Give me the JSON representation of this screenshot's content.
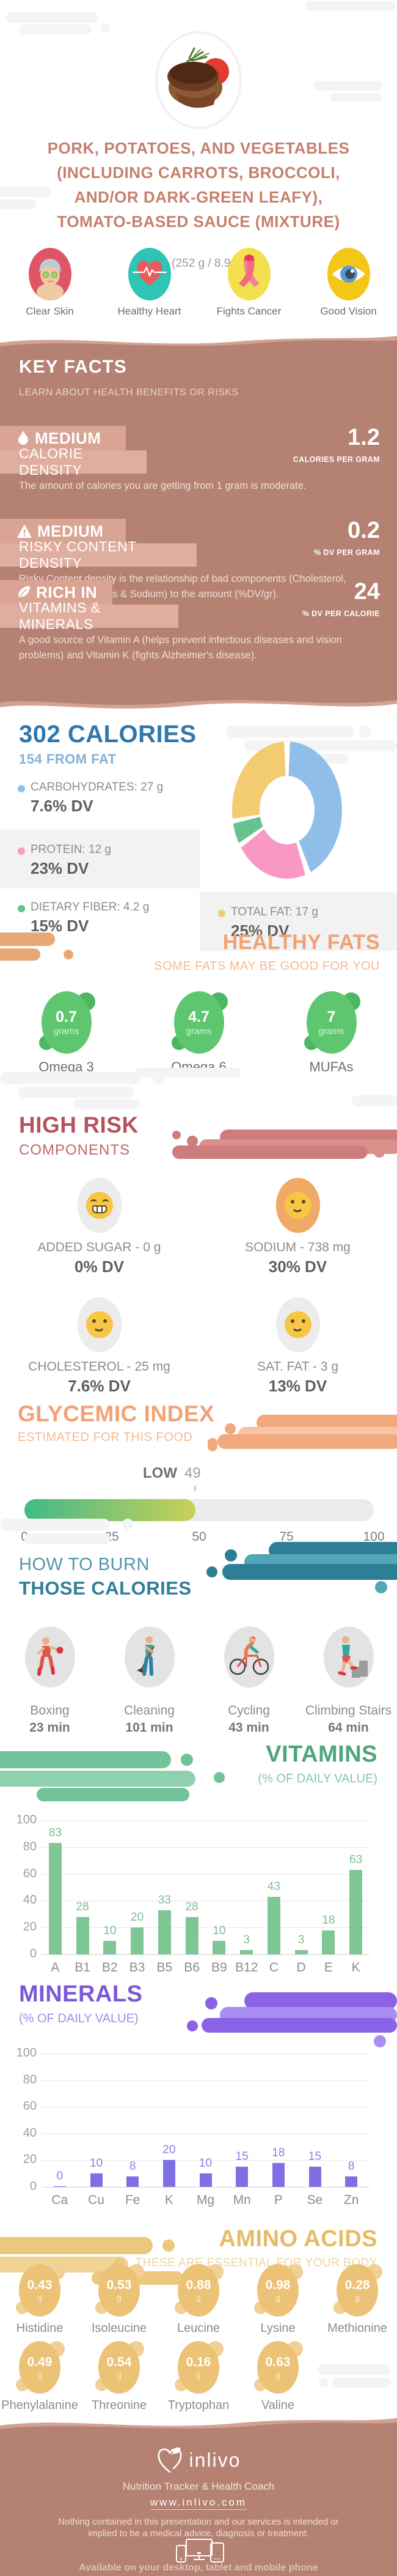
{
  "header": {
    "title_lines": [
      "PORK, POTATOES, AND VEGETABLES",
      "(INCLUDING CARROTS, BROCCOLI,",
      "AND/OR DARK-GREEN LEAFY),",
      "TOMATO-BASED SAUCE (MIXTURE)"
    ],
    "serving": "Cup (252 g / 8.9 oz)",
    "benefits": [
      {
        "icon": "clear-skin-icon",
        "label": "Clear Skin"
      },
      {
        "icon": "healthy-heart-icon",
        "label": "Healthy Heart"
      },
      {
        "icon": "fights-cancer-icon",
        "label": "Fights Cancer"
      },
      {
        "icon": "good-vision-icon",
        "label": "Good Vision"
      }
    ]
  },
  "key_facts": {
    "title": "KEY FACTS",
    "subtitle": "LEARN ABOUT HEALTH BENEFITS OR RISKS",
    "facts": [
      {
        "icon": "flame-icon",
        "level": "MEDIUM",
        "name": "CALORIE DENSITY",
        "value": "1.2",
        "unit": "CALORIES PER GRAM",
        "description": "The amount of calories you are getting from 1 gram is moderate."
      },
      {
        "icon": "warning-icon",
        "level": "MEDIUM",
        "name": "RISKY CONTENT DENSITY",
        "value": "0.2",
        "unit": "% DV PER GRAM",
        "description": "Risky Content density is the relationship of bad components (Cholesterol, Saturated Fat, Sugars & Sodium) to the amount (%DV/gr)."
      },
      {
        "icon": "leaf-icon",
        "level": "RICH IN",
        "name": "VITAMINS & MINERALS",
        "value": "24",
        "unit": "% DV PER CALORIE",
        "description": "A good source of Vitamin A (helps prevent infectious diseases and vision problems) and Vitamin K (fights Alzheimer's disease)."
      }
    ]
  },
  "calories": {
    "title": "302 CALORIES",
    "subtitle": "154 FROM FAT",
    "legend": [
      {
        "label": "CARBOHYDRATES: 27 g",
        "dv": "7.6% DV",
        "color": "#8fbfe8",
        "highlight": false
      },
      {
        "label": "PROTEIN: 12 g",
        "dv": "23% DV",
        "color": "#f899c5",
        "highlight": true
      },
      {
        "label": "DIETARY FIBER: 4.2 g",
        "dv": "15% DV",
        "color": "#66c28e",
        "highlight": false
      },
      {
        "label": "TOTAL FAT: 17 g",
        "dv": "25% DV",
        "color": "#f3cb71",
        "highlight": true
      }
    ]
  },
  "healthy_fats": {
    "title": "HEALTHY FATS",
    "subtitle": "SOME FATS MAY BE GOOD FOR YOU",
    "items": [
      {
        "value": "0.7",
        "unit": "grams",
        "label": "Omega 3"
      },
      {
        "value": "4.7",
        "unit": "grams",
        "label": "Omega 6"
      },
      {
        "value": "7",
        "unit": "grams",
        "label": "MUFAs"
      }
    ]
  },
  "high_risk": {
    "title": "HIGH RISK",
    "subtitle": "COMPONENTS",
    "items": [
      {
        "label": "ADDED SUGAR - 0 g",
        "dv": "0% DV",
        "face": "grin",
        "circle_bg": "#ececec"
      },
      {
        "label": "SODIUM - 738 mg",
        "dv": "30% DV",
        "face": "smile",
        "circle_bg": "#f0aa66"
      },
      {
        "label": "CHOLESTEROL - 25 mg",
        "dv": "7.6% DV",
        "face": "smile",
        "circle_bg": "#ececec"
      },
      {
        "label": "SAT. FAT - 3 g",
        "dv": "13% DV",
        "face": "smile",
        "circle_bg": "#ececec"
      }
    ]
  },
  "glycemic_index": {
    "title": "GLYCEMIC INDEX",
    "subtitle": "ESTIMATED FOR THIS FOOD",
    "category": "LOW",
    "value": 49,
    "scale": [
      "0",
      "25",
      "50",
      "75",
      "100"
    ]
  },
  "burn": {
    "title_line1": "HOW TO BURN",
    "title_line2": "THOSE CALORIES",
    "activities": [
      {
        "icon": "boxing-icon",
        "label": "Boxing",
        "minutes": "23 min"
      },
      {
        "icon": "cleaning-icon",
        "label": "Cleaning",
        "minutes": "101 min"
      },
      {
        "icon": "cycling-icon",
        "label": "Cycling",
        "minutes": "43 min"
      },
      {
        "icon": "climbing-stairs-icon",
        "label": "Climbing Stairs",
        "minutes": "64 min"
      }
    ]
  },
  "vitamins_section": {
    "title": "VITAMINS",
    "subtitle": "(% OF DAILY VALUE)"
  },
  "minerals_section": {
    "title": "MINERALS",
    "subtitle": "(% OF DAILY VALUE)"
  },
  "amino_section": {
    "title": "AMINO ACIDS",
    "subtitle": "THESE ARE ESSENTIAL FOR YOUR BODY",
    "items": [
      {
        "value": "0.43",
        "unit": "g",
        "label": "Histidine"
      },
      {
        "value": "0.53",
        "unit": "g",
        "label": "Isoleucine"
      },
      {
        "value": "0.88",
        "unit": "g",
        "label": "Leucine"
      },
      {
        "value": "0.98",
        "unit": "g",
        "label": "Lysine"
      },
      {
        "value": "0.28",
        "unit": "g",
        "label": "Methionine"
      },
      {
        "value": "0.49",
        "unit": "g",
        "label": "Phenylalanine"
      },
      {
        "value": "0.54",
        "unit": "g",
        "label": "Threonine"
      },
      {
        "value": "0.16",
        "unit": "g",
        "label": "Tryptophan"
      },
      {
        "value": "0.63",
        "unit": "g",
        "label": "Valine"
      }
    ]
  },
  "chart_data": [
    {
      "type": "pie",
      "title": "302 CALORIES",
      "subtitle": "154 FROM FAT",
      "legend_position": "left",
      "series": [
        {
          "name": "CARBOHYDRATES",
          "grams": 27,
          "dv_percent": 7.6,
          "share_pct": 44.9,
          "color": "#8fbfe8"
        },
        {
          "name": "PROTEIN",
          "grams": 12,
          "dv_percent": 23,
          "share_pct": 19.9,
          "color": "#f899c5"
        },
        {
          "name": "DIETARY FIBER",
          "grams": 4.2,
          "dv_percent": 15,
          "share_pct": 7.0,
          "color": "#66c28e"
        },
        {
          "name": "TOTAL FAT",
          "grams": 17,
          "dv_percent": 25,
          "share_pct": 28.2,
          "color": "#f3cb71"
        }
      ]
    },
    {
      "type": "bar",
      "title": "VITAMINS",
      "ylabel": "% of Daily Value",
      "ylim": [
        0,
        100
      ],
      "ytick_step": 20,
      "grid": true,
      "categories": [
        "A",
        "B1",
        "B2",
        "B3",
        "B5",
        "B6",
        "B9",
        "B12",
        "C",
        "D",
        "E",
        "K"
      ],
      "values": [
        83,
        28,
        10,
        20,
        33,
        28,
        10,
        3,
        43,
        3,
        18,
        63
      ],
      "bar_color": "#7ec795",
      "value_label_color": "#7fbe93"
    },
    {
      "type": "bar",
      "title": "MINERALS",
      "ylabel": "% of Daily Value",
      "ylim": [
        0,
        100
      ],
      "ytick_step": 20,
      "grid": true,
      "categories": [
        "Ca",
        "Cu",
        "Fe",
        "K",
        "Mg",
        "Mn",
        "P",
        "Se",
        "Zn"
      ],
      "values": [
        0,
        10,
        8,
        20,
        10,
        15,
        18,
        15,
        8
      ],
      "bar_color": "#7e70e3",
      "value_label_color": "#8d80e8"
    },
    {
      "type": "linear-gauge",
      "title": "GLYCEMIC INDEX",
      "value": 49,
      "category": "LOW",
      "range": [
        0,
        100
      ],
      "ticks": [
        0,
        25,
        50,
        75,
        100
      ],
      "fill_colors": [
        "#41ba87",
        "#c9d058"
      ],
      "track_color": "#ebebeb"
    }
  ],
  "footer": {
    "brand": "inlivo",
    "tagline": "Nutrition Tracker & Health Coach",
    "url": "www.inlivo.com",
    "disclaimer": "Nothing contained in this presentation and our services is intended or implied to be a medical advice, diagnosis or treatment.",
    "availability": "Available on your desktop, tablet and mobile phone"
  },
  "colors": {
    "section_mauve": "#b48172",
    "mauve_light_wave": "#d2a192",
    "fact_box1": "#d9a494",
    "fact_box2": "#dfae9f",
    "calories_blue": "#3077ad",
    "fats_orange": "#efa273",
    "risk_red": "#b5535c",
    "gi_orange": "#f2a276",
    "burn_teal": "#317e97",
    "vitamins_green": "#4ea57c",
    "minerals_purple": "#7c57d8",
    "amino_gold": "#e7bb64"
  }
}
